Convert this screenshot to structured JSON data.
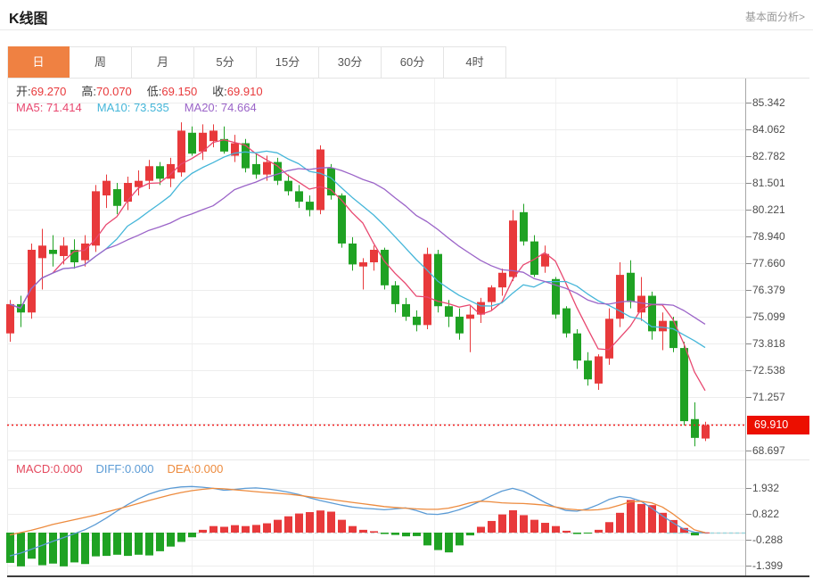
{
  "header": {
    "title": "K线图",
    "link": "基本面分析>"
  },
  "tabs": {
    "active": "day",
    "items": [
      {
        "key": "day",
        "label": "日"
      },
      {
        "key": "week",
        "label": "周"
      },
      {
        "key": "month",
        "label": "月"
      },
      {
        "key": "5min",
        "label": "5分"
      },
      {
        "key": "15min",
        "label": "15分"
      },
      {
        "key": "30min",
        "label": "30分"
      },
      {
        "key": "60min",
        "label": "60分"
      },
      {
        "key": "4hour",
        "label": "4时"
      }
    ]
  },
  "legend": {
    "ohlc": [
      {
        "label": "开:",
        "value": "69.270"
      },
      {
        "label": "高:",
        "value": "70.070"
      },
      {
        "label": "低:",
        "value": "69.150"
      },
      {
        "label": "收:",
        "value": "69.910"
      }
    ],
    "ma": [
      {
        "label": "MA5:",
        "value": "71.414"
      },
      {
        "label": "MA10:",
        "value": "73.535"
      },
      {
        "label": "MA20:",
        "value": "74.664"
      }
    ],
    "macd": [
      {
        "label": "MACD:",
        "value": "0.000"
      },
      {
        "label": "DIFF:",
        "value": "0.000"
      },
      {
        "label": "DEA:",
        "value": "0.000"
      }
    ]
  },
  "colors": {
    "up": "#e8393b",
    "down": "#1fa223",
    "ma5": "#e8476f",
    "ma10": "#45b6d9",
    "ma20": "#9b64c8",
    "diff": "#5b9bd5",
    "dea": "#ed8b3e",
    "price_line": "#f31d1d",
    "price_tag_bg": "#ec0f00",
    "tab_active_bg": "#ef8142",
    "grid": "#ededed",
    "axis": "#a8a8a8"
  },
  "chart_data": {
    "type": "candlestick+macd",
    "title": "K线图 daily candles with MA5/MA10/MA20 and MACD",
    "legend_position": "top-left",
    "grid": true,
    "price_axis_ticks": [
      "85.342",
      "84.062",
      "82.782",
      "81.501",
      "80.221",
      "78.940",
      "77.660",
      "76.379",
      "75.099",
      "73.818",
      "72.538",
      "71.257",
      "68.697"
    ],
    "price_range": [
      68.27,
      86.49
    ],
    "current_price": "69.910",
    "ma_periods": [
      5,
      10,
      20
    ],
    "candles_ohlc": [
      [
        74.3,
        75.9,
        73.9,
        75.7
      ],
      [
        75.7,
        76.1,
        74.6,
        75.3
      ],
      [
        75.3,
        78.6,
        75.0,
        78.3
      ],
      [
        77.9,
        79.3,
        76.4,
        78.5
      ],
      [
        78.3,
        79.0,
        77.5,
        78.1
      ],
      [
        78.0,
        78.9,
        77.6,
        78.5
      ],
      [
        78.3,
        78.8,
        77.4,
        77.7
      ],
      [
        77.8,
        79.0,
        77.5,
        78.6
      ],
      [
        78.5,
        81.4,
        78.2,
        81.1
      ],
      [
        80.9,
        81.9,
        80.3,
        81.6
      ],
      [
        81.2,
        81.5,
        80.0,
        80.4
      ],
      [
        80.6,
        81.8,
        80.2,
        81.5
      ],
      [
        81.3,
        82.1,
        80.9,
        81.6
      ],
      [
        81.6,
        82.6,
        81.2,
        82.3
      ],
      [
        82.3,
        82.5,
        81.4,
        81.7
      ],
      [
        81.7,
        82.7,
        81.3,
        82.4
      ],
      [
        82.0,
        84.4,
        81.8,
        84.0
      ],
      [
        83.9,
        84.2,
        82.8,
        82.9
      ],
      [
        83.0,
        84.3,
        82.6,
        83.9
      ],
      [
        83.5,
        84.3,
        83.2,
        84.0
      ],
      [
        83.6,
        84.2,
        82.9,
        83.0
      ],
      [
        82.8,
        83.8,
        82.5,
        83.4
      ],
      [
        83.4,
        83.6,
        82.0,
        82.2
      ],
      [
        82.4,
        82.9,
        81.7,
        81.9
      ],
      [
        81.9,
        82.8,
        81.6,
        82.5
      ],
      [
        82.5,
        82.7,
        81.4,
        81.6
      ],
      [
        81.6,
        81.9,
        80.9,
        81.1
      ],
      [
        81.1,
        81.4,
        80.3,
        80.6
      ],
      [
        80.6,
        80.9,
        79.9,
        80.2
      ],
      [
        80.2,
        83.3,
        80.0,
        83.1
      ],
      [
        82.2,
        82.4,
        80.7,
        80.9
      ],
      [
        80.9,
        81.0,
        78.4,
        78.6
      ],
      [
        78.6,
        78.9,
        77.3,
        77.6
      ],
      [
        77.5,
        77.9,
        76.4,
        77.7
      ],
      [
        77.7,
        78.5,
        77.3,
        78.3
      ],
      [
        78.3,
        78.4,
        76.4,
        76.6
      ],
      [
        76.6,
        76.8,
        75.3,
        75.7
      ],
      [
        75.7,
        76.0,
        74.9,
        75.1
      ],
      [
        75.1,
        75.4,
        74.4,
        74.7
      ],
      [
        74.7,
        78.4,
        74.5,
        78.1
      ],
      [
        78.1,
        78.3,
        75.3,
        75.6
      ],
      [
        75.6,
        75.9,
        74.6,
        75.1
      ],
      [
        75.1,
        75.5,
        74.0,
        74.3
      ],
      [
        75.0,
        75.6,
        73.4,
        75.2
      ],
      [
        75.2,
        76.0,
        74.8,
        75.8
      ],
      [
        75.8,
        76.6,
        75.4,
        76.5
      ],
      [
        76.5,
        77.4,
        76.1,
        77.2
      ],
      [
        77.0,
        80.2,
        76.8,
        79.7
      ],
      [
        80.1,
        80.5,
        78.5,
        78.7
      ],
      [
        78.7,
        79.0,
        77.0,
        77.1
      ],
      [
        77.5,
        78.5,
        77.2,
        78.1
      ],
      [
        76.9,
        77.0,
        75.0,
        75.2
      ],
      [
        75.5,
        75.6,
        74.1,
        74.3
      ],
      [
        74.3,
        74.5,
        72.6,
        73.0
      ],
      [
        73.0,
        73.4,
        71.8,
        72.1
      ],
      [
        71.9,
        73.3,
        71.6,
        73.2
      ],
      [
        73.1,
        75.5,
        72.8,
        75.0
      ],
      [
        75.0,
        77.7,
        74.6,
        77.1
      ],
      [
        77.2,
        77.8,
        75.5,
        75.8
      ],
      [
        75.3,
        77.0,
        74.9,
        76.1
      ],
      [
        76.1,
        76.3,
        74.0,
        74.4
      ],
      [
        74.4,
        75.3,
        73.5,
        74.9
      ],
      [
        74.9,
        75.1,
        73.4,
        73.6
      ],
      [
        73.6,
        73.9,
        69.9,
        70.1
      ],
      [
        70.2,
        71.0,
        68.9,
        69.3
      ],
      [
        69.27,
        70.07,
        69.15,
        69.91
      ]
    ],
    "macd": {
      "axis_ticks": [
        "1.932",
        "0.822",
        "-0.288",
        "-1.399"
      ],
      "histogram": [
        -1.3,
        -1.45,
        -1.12,
        -1.4,
        -1.33,
        -1.45,
        -1.28,
        -1.35,
        -1.02,
        -1.0,
        -0.95,
        -1.0,
        -0.95,
        -0.98,
        -0.8,
        -0.6,
        -0.4,
        -0.2,
        0.12,
        0.28,
        0.25,
        0.32,
        0.28,
        0.33,
        0.4,
        0.55,
        0.7,
        0.82,
        0.88,
        0.95,
        0.9,
        0.55,
        0.28,
        0.12,
        0.06,
        -0.06,
        -0.1,
        -0.16,
        -0.15,
        -0.55,
        -0.75,
        -0.85,
        -0.55,
        -0.12,
        0.25,
        0.5,
        0.78,
        0.96,
        0.75,
        0.55,
        0.42,
        0.28,
        0.08,
        -0.06,
        -0.04,
        0.12,
        0.45,
        0.85,
        1.4,
        1.23,
        1.18,
        0.85,
        0.54,
        0.2,
        -0.12,
        0.01
      ],
      "diff": [
        -1.0,
        -0.88,
        -0.72,
        -0.55,
        -0.38,
        -0.22,
        -0.05,
        0.12,
        0.35,
        0.62,
        0.92,
        1.2,
        1.45,
        1.65,
        1.8,
        1.9,
        1.96,
        1.98,
        1.95,
        1.9,
        1.82,
        1.85,
        1.9,
        1.92,
        1.88,
        1.82,
        1.74,
        1.64,
        1.5,
        1.38,
        1.28,
        1.18,
        1.1,
        1.05,
        1.02,
        0.98,
        1.02,
        1.06,
        0.95,
        0.8,
        0.78,
        0.85,
        0.98,
        1.15,
        1.35,
        1.58,
        1.78,
        1.9,
        1.78,
        1.55,
        1.3,
        1.1,
        0.95,
        0.92,
        1.02,
        1.2,
        1.42,
        1.55,
        1.5,
        1.35,
        1.05,
        0.72,
        0.42,
        0.15,
        0.02,
        0.0
      ],
      "dea": [
        -0.1,
        0.0,
        0.1,
        0.22,
        0.35,
        0.45,
        0.55,
        0.65,
        0.75,
        0.88,
        1.0,
        1.12,
        1.25,
        1.38,
        1.5,
        1.62,
        1.72,
        1.8,
        1.86,
        1.9,
        1.88,
        1.84,
        1.8,
        1.76,
        1.72,
        1.69,
        1.65,
        1.6,
        1.54,
        1.48,
        1.42,
        1.36,
        1.3,
        1.24,
        1.18,
        1.12,
        1.08,
        1.05,
        1.02,
        1.0,
        1.0,
        1.05,
        1.15,
        1.28,
        1.35,
        1.32,
        1.28,
        1.26,
        1.25,
        1.22,
        1.18,
        1.1,
        1.02,
        0.98,
        0.96,
        0.98,
        1.05,
        1.18,
        1.32,
        1.35,
        1.28,
        1.1,
        0.8,
        0.45,
        0.12,
        0.0
      ]
    }
  }
}
